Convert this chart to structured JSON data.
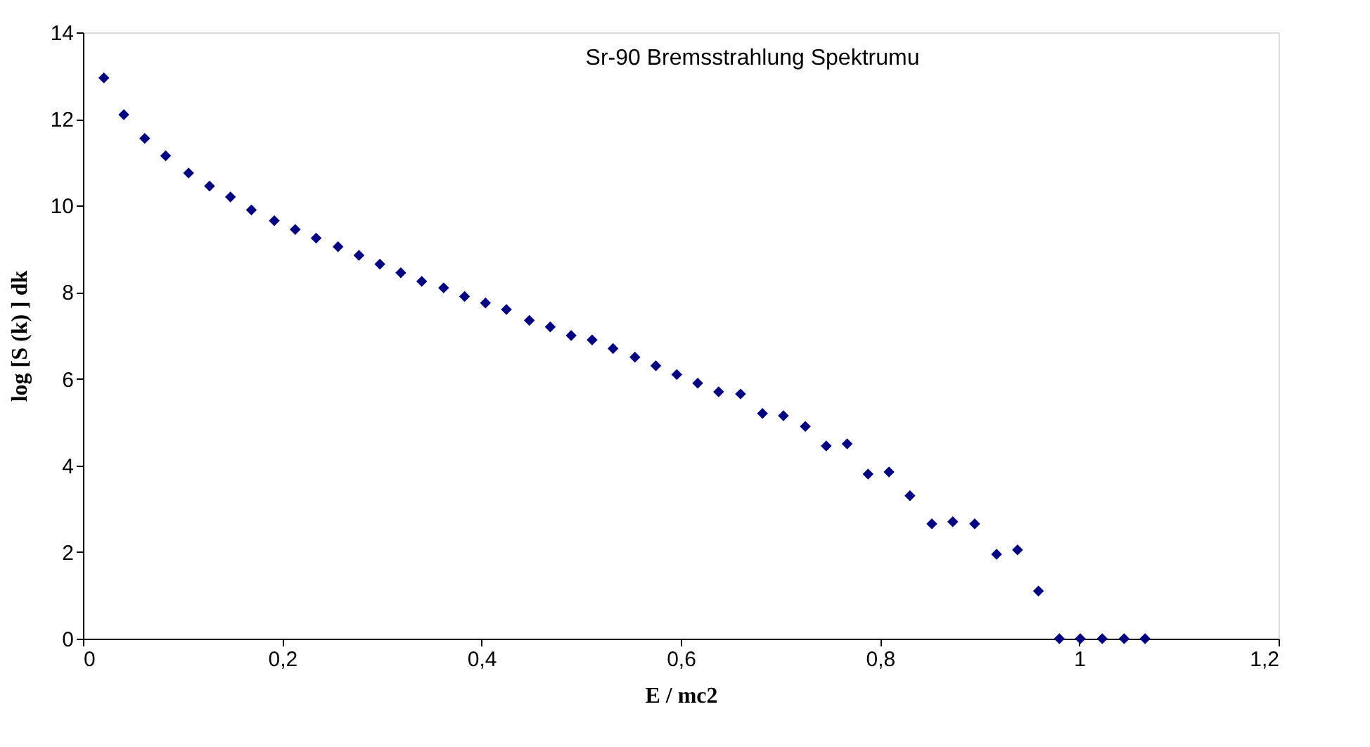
{
  "chart_data": {
    "type": "scatter",
    "title": "Sr-90 Bremsstrahlung Spektrumu",
    "xlabel": "E / mc2",
    "ylabel": "log [S (k) ] dk",
    "x": [
      0.021,
      0.041,
      0.062,
      0.083,
      0.106,
      0.127,
      0.148,
      0.169,
      0.192,
      0.213,
      0.234,
      0.256,
      0.277,
      0.298,
      0.319,
      0.34,
      0.362,
      0.383,
      0.404,
      0.425,
      0.448,
      0.469,
      0.49,
      0.511,
      0.532,
      0.554,
      0.575,
      0.596,
      0.617,
      0.638,
      0.66,
      0.682,
      0.703,
      0.725,
      0.746,
      0.767,
      0.788,
      0.809,
      0.83,
      0.852,
      0.873,
      0.895,
      0.917,
      0.938,
      0.959,
      0.98,
      1.001,
      1.023,
      1.045,
      1.066
    ],
    "series": [
      {
        "color": "#000080",
        "values": [
          12.95,
          12.1,
          11.55,
          11.15,
          10.75,
          10.45,
          10.2,
          9.9,
          9.65,
          9.45,
          9.25,
          9.05,
          8.85,
          8.65,
          8.45,
          8.25,
          8.1,
          7.9,
          7.75,
          7.6,
          7.35,
          7.2,
          7.0,
          6.9,
          6.7,
          6.5,
          6.3,
          6.1,
          5.9,
          5.7,
          5.65,
          5.2,
          5.15,
          4.9,
          4.45,
          4.5,
          3.8,
          3.85,
          3.3,
          2.65,
          2.7,
          2.65,
          1.95,
          2.05,
          1.1,
          0,
          0,
          0,
          0,
          0
        ]
      }
    ],
    "xlim": [
      0,
      1.2
    ],
    "xticks": [
      {
        "value": 0,
        "label": "0"
      },
      {
        "value": 0.2,
        "label": "0,2"
      },
      {
        "value": 0.4,
        "label": "0,4"
      },
      {
        "value": 0.6,
        "label": "0,6"
      },
      {
        "value": 0.8,
        "label": "0,8"
      },
      {
        "value": 1,
        "label": "1"
      },
      {
        "value": 1.2,
        "label": "1,2"
      }
    ],
    "ylim": [
      0,
      14
    ],
    "yticks": [
      0,
      2,
      4,
      6,
      8,
      10,
      12,
      14
    ],
    "marker": "diamond",
    "grid": false
  }
}
